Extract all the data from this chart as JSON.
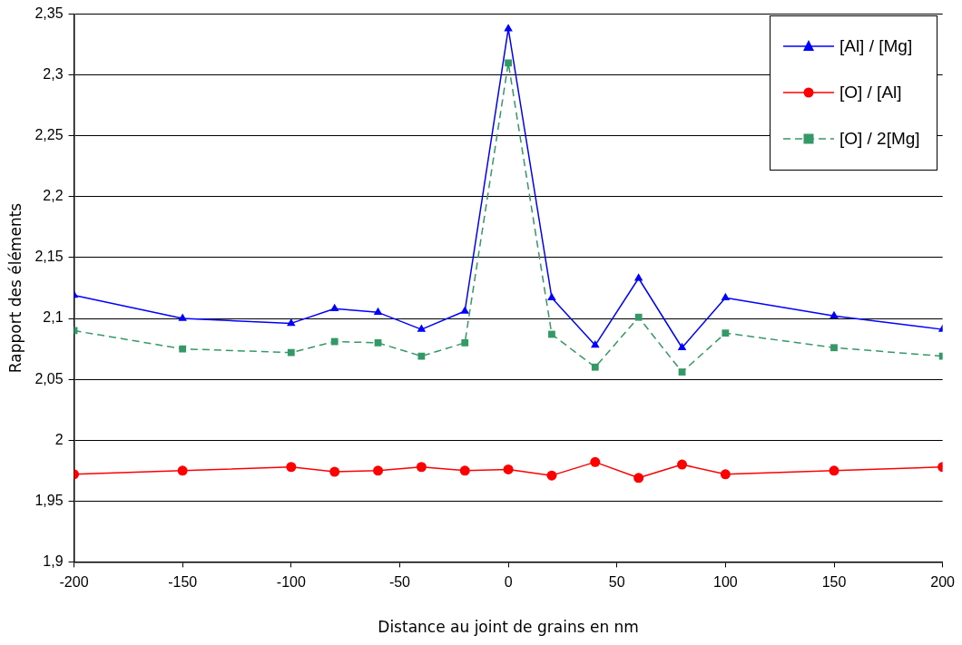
{
  "chart_data": {
    "type": "line",
    "xlabel": "Distance au joint de grains en nm",
    "ylabel": "Rapport des éléments",
    "x": [
      -200,
      -150,
      -100,
      -80,
      -60,
      -40,
      -20,
      0,
      20,
      40,
      60,
      80,
      100,
      150,
      200
    ],
    "series": [
      {
        "name": "[Al] / [Mg]",
        "color": "#0000ff",
        "marker": "triangle",
        "line_style": "solid",
        "values": [
          2.119,
          2.1,
          2.096,
          2.108,
          2.105,
          2.091,
          2.106,
          2.338,
          2.117,
          2.078,
          2.133,
          2.076,
          2.117,
          2.102,
          2.091
        ]
      },
      {
        "name": "[O] / [Al]",
        "color": "#ff0000",
        "marker": "circle",
        "line_style": "solid",
        "values": [
          1.972,
          1.975,
          1.978,
          1.974,
          1.975,
          1.978,
          1.975,
          1.976,
          1.971,
          1.982,
          1.969,
          1.98,
          1.972,
          1.975,
          1.978
        ]
      },
      {
        "name": "[O] / 2[Mg]",
        "color": "#339966",
        "marker": "square",
        "line_style": "dashed",
        "values": [
          2.09,
          2.075,
          2.072,
          2.081,
          2.08,
          2.069,
          2.08,
          2.31,
          2.087,
          2.06,
          2.101,
          2.056,
          2.088,
          2.076,
          2.069
        ]
      }
    ],
    "xlim": [
      -200,
      200
    ],
    "xticks": [
      -200,
      -150,
      -100,
      -50,
      0,
      50,
      100,
      150,
      200
    ],
    "ylim": [
      1.9,
      2.35
    ],
    "yticks": [
      {
        "value": 1.9,
        "label": "1,9"
      },
      {
        "value": 1.95,
        "label": "1,95"
      },
      {
        "value": 2,
        "label": "2"
      },
      {
        "value": 2.05,
        "label": "2,05"
      },
      {
        "value": 2.1,
        "label": "2,1"
      },
      {
        "value": 2.15,
        "label": "2,15"
      },
      {
        "value": 2.2,
        "label": "2,2"
      },
      {
        "value": 2.25,
        "label": "2,25"
      },
      {
        "value": 2.3,
        "label": "2,3"
      },
      {
        "value": 2.35,
        "label": "2,35"
      }
    ],
    "grid": "y",
    "legend": "top right"
  }
}
